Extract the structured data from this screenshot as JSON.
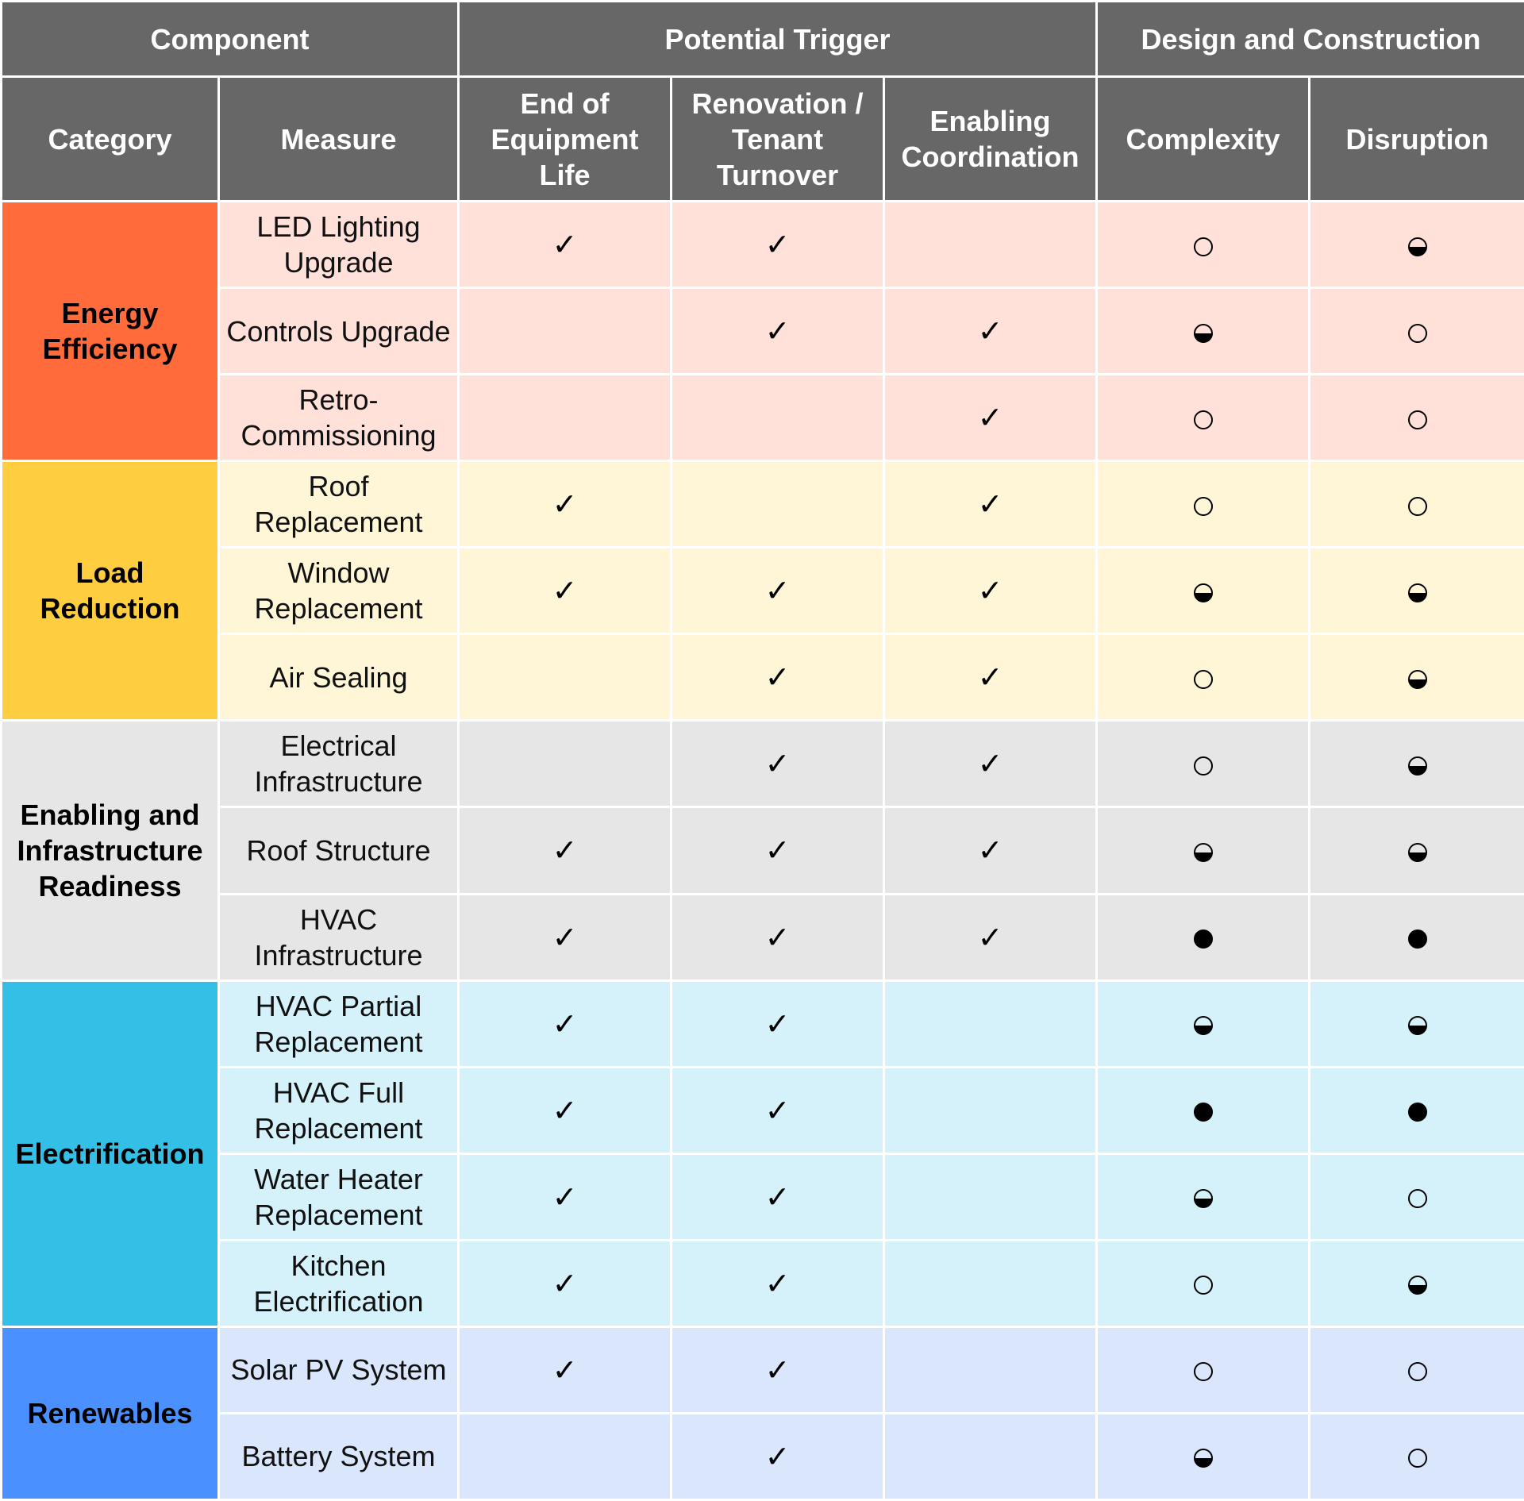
{
  "header": {
    "groups": [
      "Component",
      "Potential Trigger",
      "Design and Construction"
    ],
    "columns": [
      "Category",
      "Measure",
      "End of Equipment Life",
      "Renovation / Tenant Turnover",
      "Enabling Coordination",
      "Complexity",
      "Disruption"
    ]
  },
  "categories": [
    {
      "name": "Energy Efficiency",
      "color": "#ff6b3b",
      "row_color": "#ffe1d9",
      "measures": [
        {
          "name": "LED Lighting Upgrade",
          "end_of_life": "✓",
          "renovation": "✓",
          "enabling": "",
          "complexity": "low",
          "disruption": "medium"
        },
        {
          "name": "Controls Upgrade",
          "end_of_life": "",
          "renovation": "✓",
          "enabling": "✓",
          "complexity": "medium",
          "disruption": "low"
        },
        {
          "name": "Retro-Commissioning",
          "end_of_life": "",
          "renovation": "",
          "enabling": "✓",
          "complexity": "low",
          "disruption": "low"
        }
      ]
    },
    {
      "name": "Load Reduction",
      "color": "#ffcd40",
      "row_color": "#fff5d7",
      "measures": [
        {
          "name": "Roof Replacement",
          "end_of_life": "✓",
          "renovation": "",
          "enabling": "✓",
          "complexity": "low",
          "disruption": "low"
        },
        {
          "name": "Window Replacement",
          "end_of_life": "✓",
          "renovation": "✓",
          "enabling": "✓",
          "complexity": "medium",
          "disruption": "medium"
        },
        {
          "name": "Air Sealing",
          "end_of_life": "",
          "renovation": "✓",
          "enabling": "✓",
          "complexity": "low",
          "disruption": "medium"
        }
      ]
    },
    {
      "name": "Enabling and Infrastructure Readiness",
      "color": "#e6e6e6",
      "row_color": "#e6e6e6",
      "measures": [
        {
          "name": "Electrical Infrastructure",
          "end_of_life": "",
          "renovation": "✓",
          "enabling": "✓",
          "complexity": "low",
          "disruption": "medium"
        },
        {
          "name": "Roof Structure",
          "end_of_life": "✓",
          "renovation": "✓",
          "enabling": "✓",
          "complexity": "medium",
          "disruption": "medium"
        },
        {
          "name": "HVAC Infrastructure",
          "end_of_life": "✓",
          "renovation": "✓",
          "enabling": "✓",
          "complexity": "high",
          "disruption": "high"
        }
      ]
    },
    {
      "name": "Electrification",
      "color": "#33bfe6",
      "row_color": "#d5f2fa",
      "measures": [
        {
          "name": "HVAC Partial Replacement",
          "end_of_life": "✓",
          "renovation": "✓",
          "enabling": "",
          "complexity": "medium",
          "disruption": "medium"
        },
        {
          "name": "HVAC Full Replacement",
          "end_of_life": "✓",
          "renovation": "✓",
          "enabling": "",
          "complexity": "high",
          "disruption": "high"
        },
        {
          "name": "Water Heater Replacement",
          "end_of_life": "✓",
          "renovation": "✓",
          "enabling": "",
          "complexity": "medium",
          "disruption": "low"
        },
        {
          "name": "Kitchen Electrification",
          "end_of_life": "✓",
          "renovation": "✓",
          "enabling": "",
          "complexity": "low",
          "disruption": "medium"
        }
      ]
    },
    {
      "name": "Renewables",
      "color": "#4a90ff",
      "row_color": "#d9e6fb",
      "measures": [
        {
          "name": "Solar PV System",
          "end_of_life": "✓",
          "renovation": "✓",
          "enabling": "",
          "complexity": "low",
          "disruption": "low"
        },
        {
          "name": "Battery System",
          "end_of_life": "",
          "renovation": "✓",
          "enabling": "",
          "complexity": "medium",
          "disruption": "low"
        }
      ]
    }
  ]
}
